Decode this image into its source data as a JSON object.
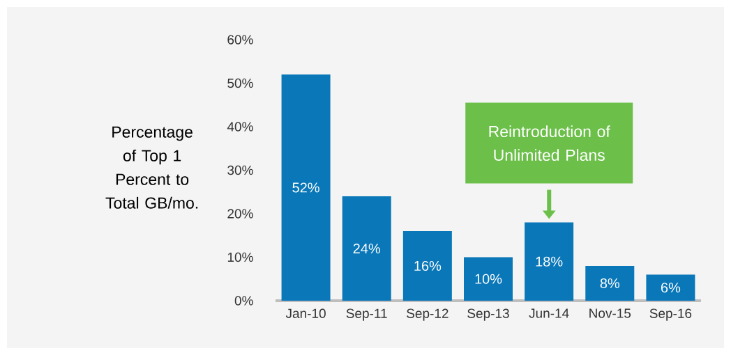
{
  "chart_data": {
    "type": "bar",
    "ylabel": "Percentage of Top 1 Percent to Total GB/mo.",
    "categories": [
      "Jan-10",
      "Sep-11",
      "Sep-12",
      "Sep-13",
      "Jun-14",
      "Nov-15",
      "Sep-16"
    ],
    "values": [
      52,
      24,
      16,
      10,
      18,
      8,
      6
    ],
    "value_labels": [
      "52%",
      "24%",
      "16%",
      "10%",
      "18%",
      "8%",
      "6%"
    ],
    "color": "#0a77b8",
    "ylim": [
      0,
      60
    ],
    "yticks": [
      {
        "value": 0,
        "label": "0%"
      },
      {
        "value": 10,
        "label": "10%"
      },
      {
        "value": 20,
        "label": "20%"
      },
      {
        "value": 30,
        "label": "30%"
      },
      {
        "value": 40,
        "label": "40%"
      },
      {
        "value": 50,
        "label": "50%"
      },
      {
        "value": 60,
        "label": "60%"
      }
    ],
    "annotations": [
      "Reintroduction of Unlimited Plans"
    ],
    "grid": false
  }
}
